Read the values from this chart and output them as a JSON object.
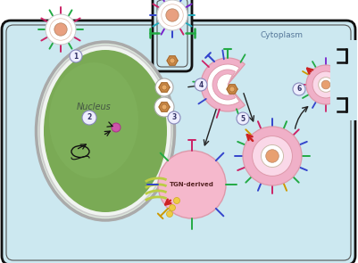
{
  "bg_color": "#ffffff",
  "cell_bg": "#cce8f0",
  "cell_border": "#222222",
  "nucleus_fill": "#7aaa55",
  "nucleus_glow": "#e0eedd",
  "cytoplasm_text": "Cytoplasm",
  "nucleus_text": "Nucleus",
  "tgn_text": "TGN-derived",
  "circle_color": "#8888bb",
  "circle_fill": "#eeeeff",
  "pink_vesicle": "#f0b0c8",
  "pink_light": "#fad8e8",
  "tegument_brown": "#cc8844",
  "spike_green": "#22aa44",
  "spike_blue": "#3344cc",
  "spike_red": "#cc2266",
  "spike_cyan": "#22aabb",
  "spike_purple": "#7722cc",
  "spike_yellow": "#cc9900",
  "spike_orange": "#dd7700"
}
